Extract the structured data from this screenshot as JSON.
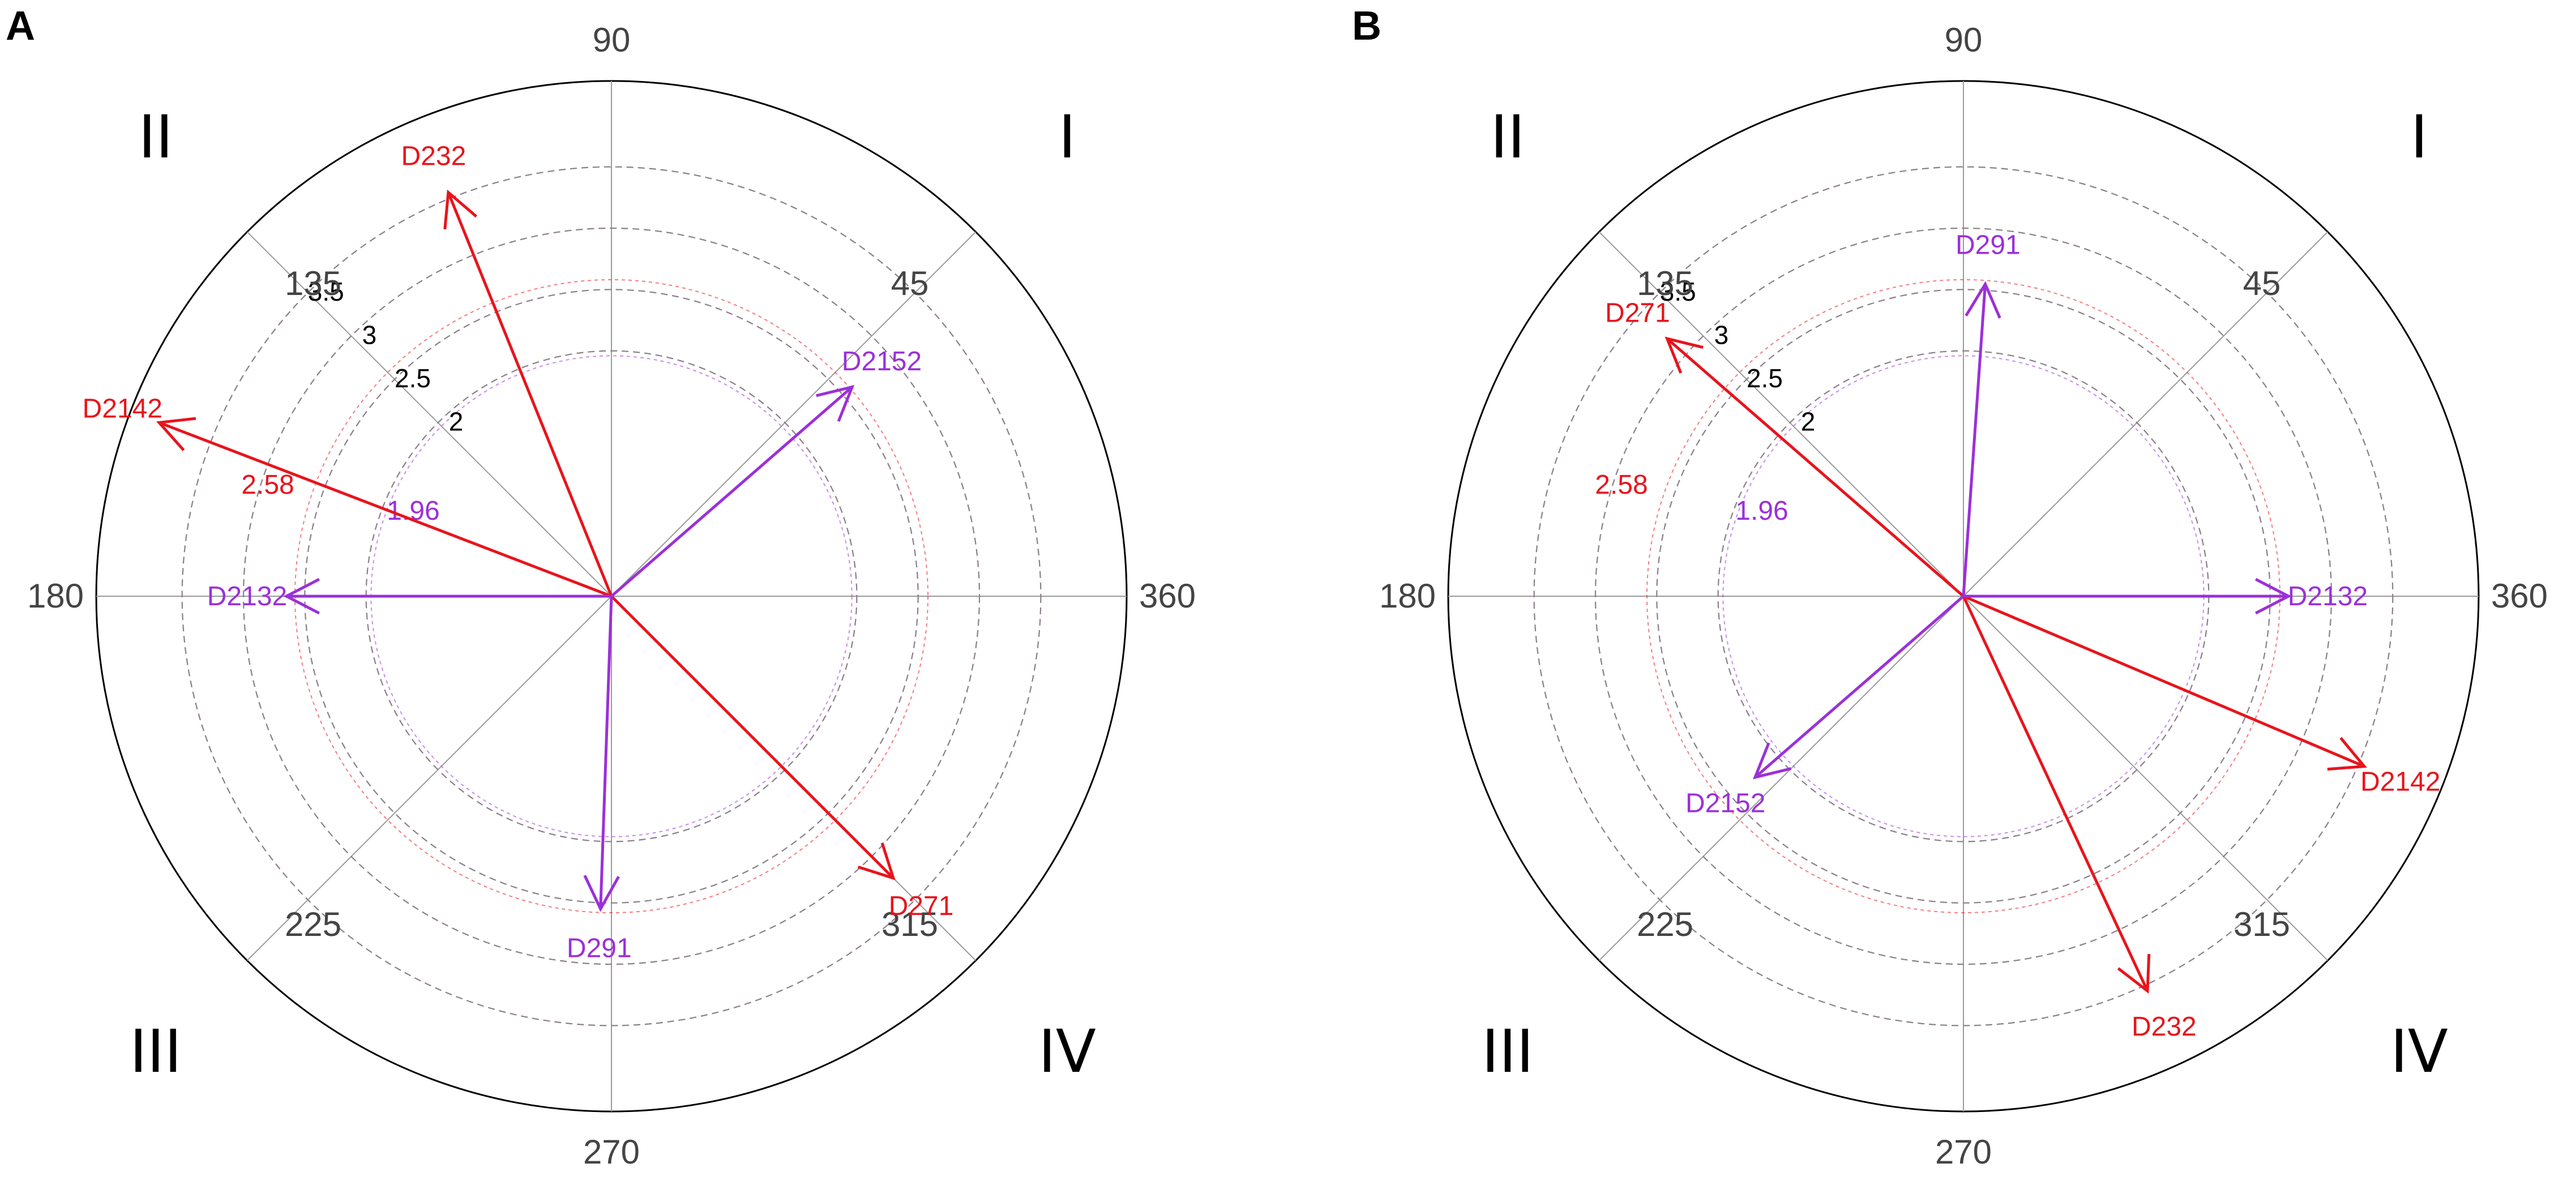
{
  "chart_data": [
    {
      "type": "polar-vector",
      "panel": "A",
      "angle_ticks": [
        "90",
        "45",
        "360",
        "315",
        "270",
        "225",
        "180",
        "135"
      ],
      "quadrants": [
        "I",
        "II",
        "III",
        "IV"
      ],
      "rings": [
        2,
        2.5,
        3,
        3.5
      ],
      "ring_labels": [
        "2",
        "2.5",
        "3",
        "3.5"
      ],
      "significance_rings": [
        {
          "label": "1.96",
          "value": 1.96,
          "color": "#9b30d9"
        },
        {
          "label": "2.58",
          "value": 2.58,
          "color": "#e8141c"
        }
      ],
      "max_radius": 4.2,
      "vectors": [
        {
          "label": "D232",
          "angle": 112,
          "length": 3.55,
          "color": "#e8141c"
        },
        {
          "label": "D2142",
          "angle": 159,
          "length": 3.95,
          "color": "#e8141c"
        },
        {
          "label": "D271",
          "angle": 315,
          "length": 3.25,
          "color": "#e8141c"
        },
        {
          "label": "D2152",
          "angle": 41,
          "length": 2.6,
          "color": "#9b30d9"
        },
        {
          "label": "D2132",
          "angle": 180,
          "length": 2.65,
          "color": "#9b30d9"
        },
        {
          "label": "D291",
          "angle": 268,
          "length": 2.55,
          "color": "#9b30d9"
        }
      ]
    },
    {
      "type": "polar-vector",
      "panel": "B",
      "angle_ticks": [
        "90",
        "45",
        "360",
        "315",
        "270",
        "225",
        "180",
        "135"
      ],
      "quadrants": [
        "I",
        "II",
        "III",
        "IV"
      ],
      "rings": [
        2,
        2.5,
        3,
        3.5
      ],
      "ring_labels": [
        "2",
        "2.5",
        "3",
        "3.5"
      ],
      "significance_rings": [
        {
          "label": "1.96",
          "value": 1.96,
          "color": "#9b30d9"
        },
        {
          "label": "2.58",
          "value": 2.58,
          "color": "#e8141c"
        }
      ],
      "max_radius": 4.2,
      "vectors": [
        {
          "label": "D271",
          "angle": 139,
          "length": 3.2,
          "color": "#e8141c"
        },
        {
          "label": "D2142",
          "angle": 337,
          "length": 3.55,
          "color": "#e8141c"
        },
        {
          "label": "D232",
          "angle": 295,
          "length": 3.55,
          "color": "#e8141c"
        },
        {
          "label": "D291",
          "angle": 86,
          "length": 2.55,
          "color": "#9b30d9"
        },
        {
          "label": "D2132",
          "angle": 0,
          "length": 2.65,
          "color": "#9b30d9"
        },
        {
          "label": "D2152",
          "angle": 221,
          "length": 2.25,
          "color": "#9b30d9"
        }
      ]
    }
  ]
}
